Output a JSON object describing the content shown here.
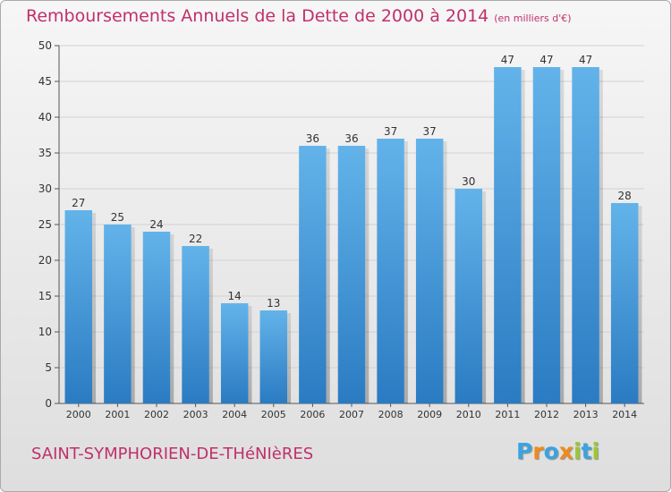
{
  "title": "Remboursements Annuels de la Dette de 2000 à 2014",
  "unit_label": "(en milliers d'€)",
  "commune": "SAINT-SYMPHORIEN-DE-THéNIèRES",
  "logo": {
    "letters": [
      "P",
      "r",
      "o",
      "x",
      "i",
      "t",
      "i"
    ],
    "colors": [
      "#3aa3e0",
      "#f08a1c",
      "#3aa3e0",
      "#f08a1c",
      "#9bc832",
      "#3aa3e0",
      "#9bc832"
    ]
  },
  "colors": {
    "bar_top": "#63b3ea",
    "bar_bottom": "#2a7bc2",
    "title": "#c0306a",
    "grid": "#d2d2d2"
  },
  "chart_data": {
    "type": "bar",
    "categories": [
      "2000",
      "2001",
      "2002",
      "2003",
      "2004",
      "2005",
      "2006",
      "2007",
      "2008",
      "2009",
      "2010",
      "2011",
      "2012",
      "2013",
      "2014"
    ],
    "values": [
      27,
      25,
      24,
      22,
      14,
      13,
      36,
      36,
      37,
      37,
      30,
      47,
      47,
      47,
      28
    ],
    "ylim": [
      0,
      50
    ],
    "yticks": [
      0,
      5,
      10,
      15,
      20,
      25,
      30,
      35,
      40,
      45,
      50
    ],
    "grid": true
  }
}
